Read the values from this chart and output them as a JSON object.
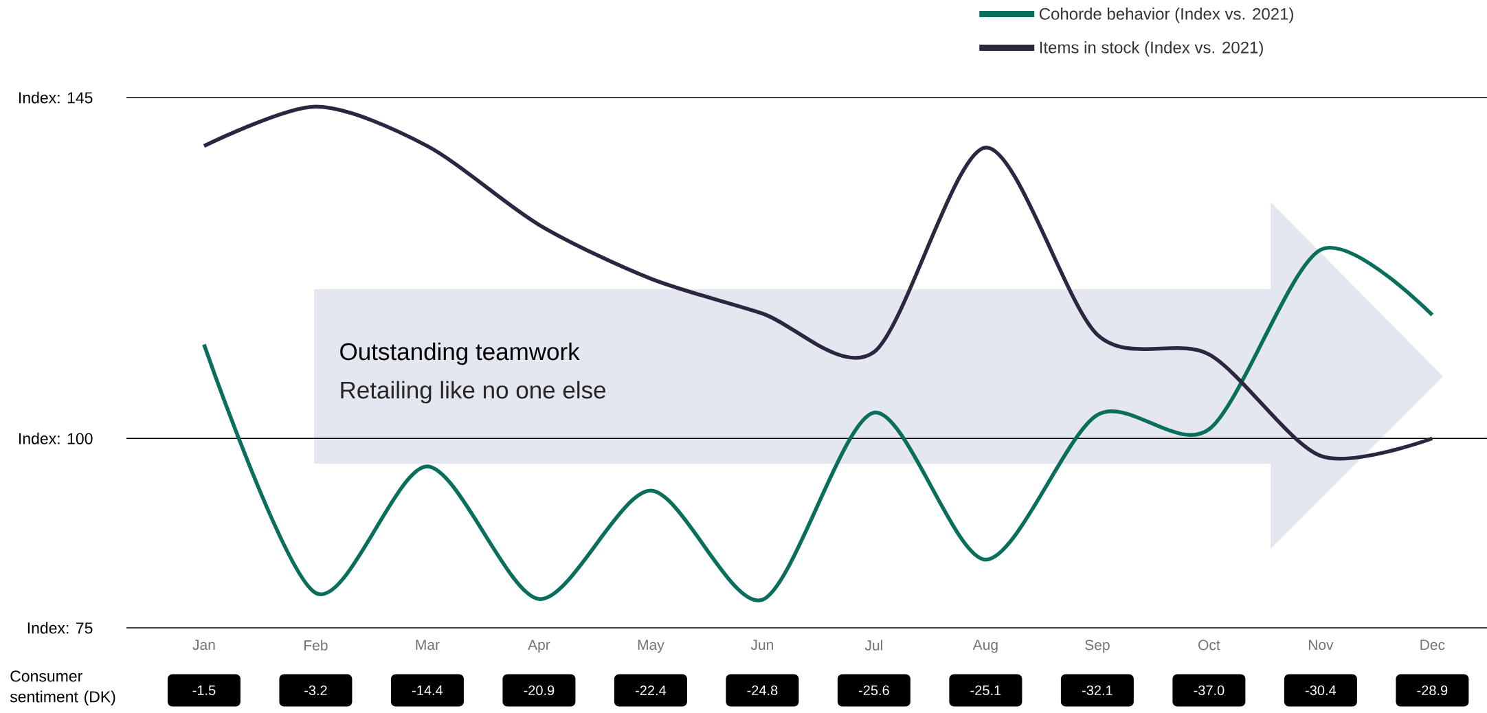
{
  "chart_data": {
    "type": "line",
    "categories": [
      "Jan",
      "Feb",
      "Mar",
      "Apr",
      "May",
      "Jun",
      "Jul",
      "Aug",
      "Sep",
      "Oct",
      "Nov",
      "Dec"
    ],
    "series": [
      {
        "name": "Cohorde behavior (Index vs. 2021)",
        "color": "#0a6e5c",
        "values": [
          112.4,
          79.6,
          96.3,
          78.8,
          93.1,
          78.7,
          103.4,
          84.0,
          103.1,
          101.2,
          124.9,
          116.3
        ]
      },
      {
        "name": "Items in stock (Index vs. 2021)",
        "color": "#2b2740",
        "values": [
          138.6,
          143.8,
          138.6,
          128.2,
          121.1,
          116.5,
          111.4,
          138.4,
          113.7,
          111.1,
          97.7,
          100.0
        ]
      }
    ],
    "ylim": [
      75,
      145
    ],
    "yticks": [
      {
        "value": 75,
        "label": "Index: 75"
      },
      {
        "value": 100,
        "label": "Index: 100"
      },
      {
        "value": 145,
        "label": "Index: 145"
      }
    ],
    "grid": "y",
    "legend": "top right",
    "annotations": [
      "Outstanding teamwork",
      "Retailing like no one else",
      "Consumer sentiment (DK)",
      "-1.5",
      "-3.2",
      "-14.4",
      "-20.9",
      "-22.4",
      "-24.8",
      "-25.6",
      "-25.1",
      "-32.1",
      "-37.0",
      "-30.4",
      "-28.9"
    ]
  }
}
